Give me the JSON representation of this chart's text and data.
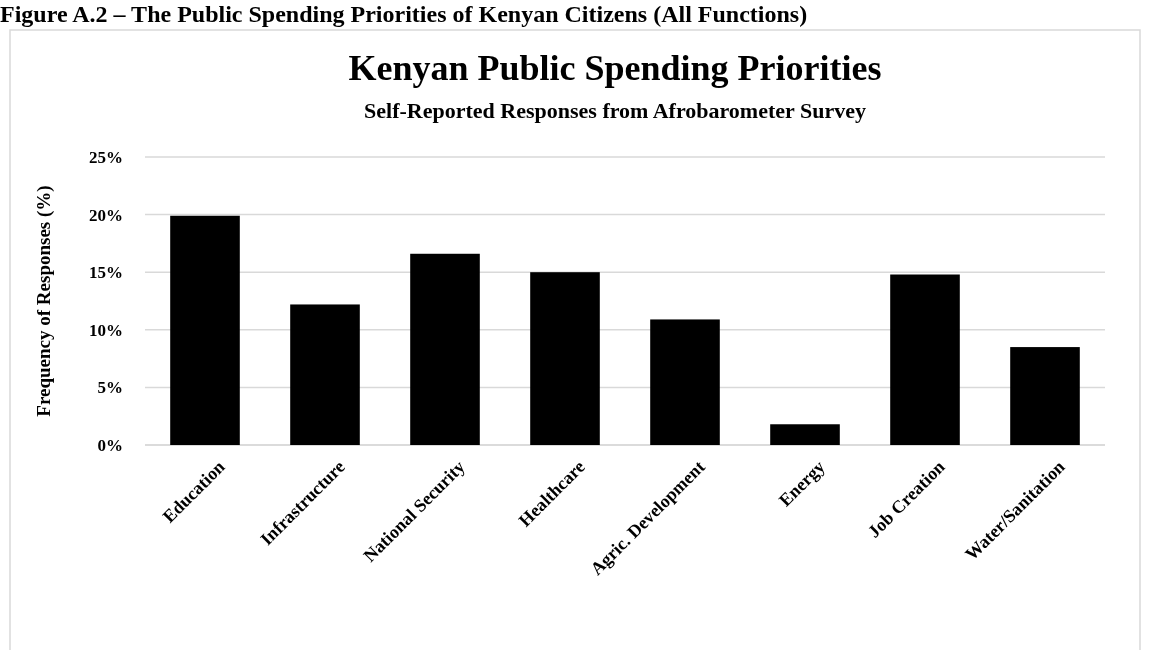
{
  "chart_data": {
    "type": "bar",
    "title": "Kenyan Public Spending Priorities",
    "subtitle": "Self-Reported Responses from Afrobarometer Survey",
    "ylabel": "Frequency of Responses (%)",
    "annotations": [
      "Figure A.2 – The Public Spending Priorities of Kenyan Citizens (All Functions)"
    ],
    "categories": [
      "Education",
      "Infrastructure",
      "National Security",
      "Healthcare",
      "Agric. Development",
      "Energy",
      "Job Creation",
      "Water/Sanitation"
    ],
    "values": [
      19.9,
      12.2,
      16.6,
      15.0,
      10.9,
      1.8,
      14.8,
      8.5
    ],
    "color": "#000000",
    "ylim": [
      0,
      25
    ],
    "yticks": [
      {
        "value": 0,
        "label": "0%"
      },
      {
        "value": 5,
        "label": "5%"
      },
      {
        "value": 10,
        "label": "10%"
      },
      {
        "value": 15,
        "label": "15%"
      },
      {
        "value": 20,
        "label": "20%"
      },
      {
        "value": 25,
        "label": "25%"
      }
    ],
    "grid": "y"
  }
}
